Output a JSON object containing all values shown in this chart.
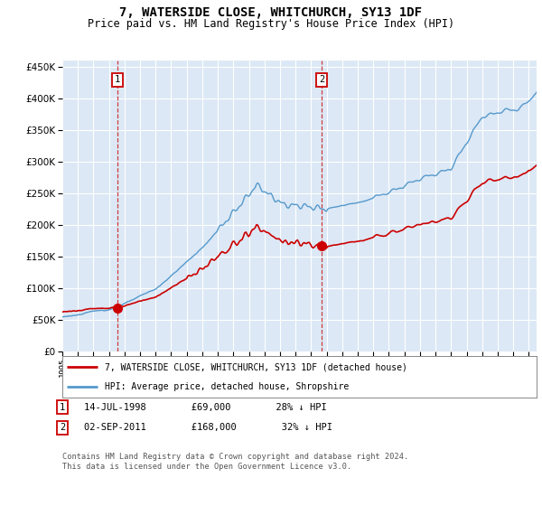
{
  "title": "7, WATERSIDE CLOSE, WHITCHURCH, SY13 1DF",
  "subtitle": "Price paid vs. HM Land Registry's House Price Index (HPI)",
  "title_fontsize": 10,
  "subtitle_fontsize": 8.5,
  "bg_color": "#dce8f5",
  "red_color": "#cc0000",
  "blue_color": "#5599cc",
  "grid_color": "#ffffff",
  "sale1_date": 1998.54,
  "sale1_price": 69000,
  "sale2_date": 2011.67,
  "sale2_price": 168000,
  "legend1": "7, WATERSIDE CLOSE, WHITCHURCH, SY13 1DF (detached house)",
  "legend2": "HPI: Average price, detached house, Shropshire",
  "note1_text": "14-JUL-1998        £69,000        28% ↓ HPI",
  "note2_text": "02-SEP-2011        £168,000        32% ↓ HPI",
  "footer": "Contains HM Land Registry data © Crown copyright and database right 2024.\nThis data is licensed under the Open Government Licence v3.0.",
  "ylim": [
    0,
    460000
  ],
  "yticks": [
    0,
    50000,
    100000,
    150000,
    200000,
    250000,
    300000,
    350000,
    400000,
    450000
  ]
}
